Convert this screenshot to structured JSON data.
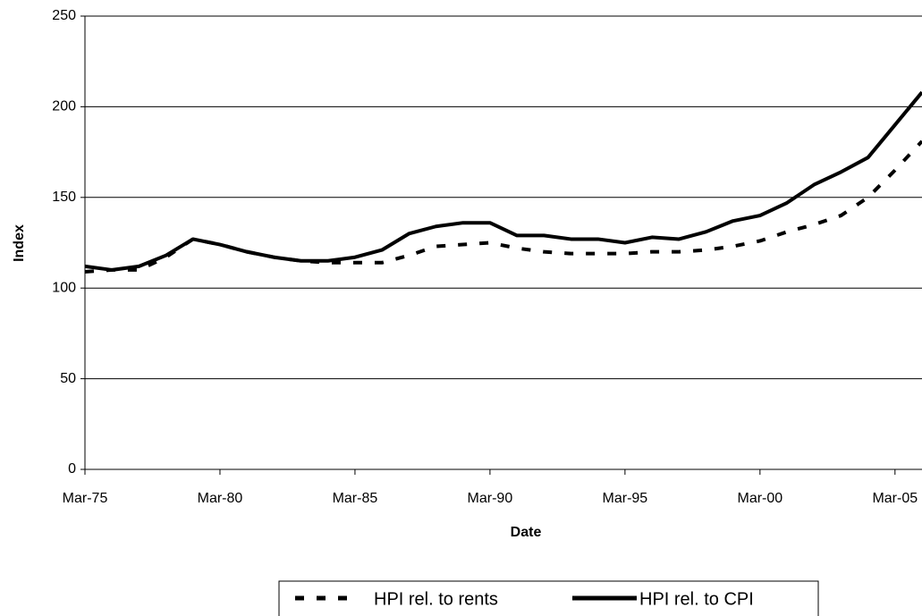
{
  "chart_data": {
    "type": "line",
    "x_label": "Date",
    "y_label": "Index",
    "x": [
      1975,
      1976,
      1977,
      1978,
      1979,
      1980,
      1981,
      1982,
      1983,
      1984,
      1985,
      1986,
      1987,
      1988,
      1989,
      1990,
      1991,
      1992,
      1993,
      1994,
      1995,
      1996,
      1997,
      1998,
      1999,
      2000,
      2001,
      2002,
      2003,
      2004,
      2005,
      2006
    ],
    "series": [
      {
        "name": "HPI rel. to rents",
        "color": "#000000",
        "line_style": "dashed",
        "values": [
          109,
          110,
          110,
          117,
          127,
          124,
          120,
          117,
          115,
          114,
          114,
          114,
          118,
          123,
          124,
          125,
          122,
          120,
          119,
          119,
          119,
          120,
          120,
          121,
          123,
          126,
          131,
          135,
          140,
          150,
          165,
          181
        ]
      },
      {
        "name": "HPI rel. to CPI",
        "color": "#000000",
        "line_style": "solid",
        "values": [
          112,
          110,
          112,
          118,
          127,
          124,
          120,
          117,
          115,
          115,
          117,
          121,
          130,
          134,
          136,
          136,
          129,
          129,
          127,
          127,
          125,
          128,
          127,
          131,
          137,
          140,
          147,
          157,
          164,
          172,
          190,
          208
        ]
      }
    ],
    "xlim": [
      1975,
      2006
    ],
    "xticks": [
      {
        "value": 1975,
        "label": "Mar-75"
      },
      {
        "value": 1980,
        "label": "Mar-80"
      },
      {
        "value": 1985,
        "label": "Mar-85"
      },
      {
        "value": 1990,
        "label": "Mar-90"
      },
      {
        "value": 1995,
        "label": "Mar-95"
      },
      {
        "value": 2000,
        "label": "Mar-00"
      },
      {
        "value": 2005,
        "label": "Mar-05"
      }
    ],
    "ylim": [
      0,
      250
    ],
    "yticks": [
      0,
      50,
      100,
      150,
      200,
      250
    ],
    "grid": true,
    "legend": "bottom"
  }
}
